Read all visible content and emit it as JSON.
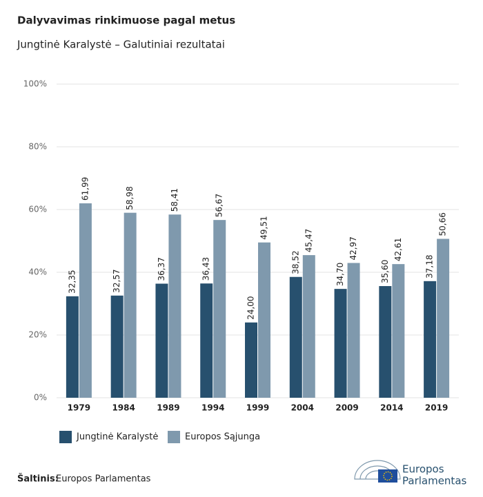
{
  "chart_data": {
    "type": "bar",
    "title": "Dalyvavimas rinkimuose pagal metus",
    "subtitle": "Jungtinė Karalystė – Galutiniai rezultatai",
    "categories": [
      "1979",
      "1984",
      "1989",
      "1994",
      "1999",
      "2004",
      "2009",
      "2014",
      "2019"
    ],
    "series": [
      {
        "name": "Jungtinė Karalystė",
        "color": "#27506e",
        "values": [
          32.35,
          32.57,
          36.37,
          36.43,
          24.0,
          38.52,
          34.7,
          35.6,
          37.18
        ],
        "value_labels": [
          "32,35",
          "32,57",
          "36,37",
          "36,43",
          "24,00",
          "38,52",
          "34,70",
          "35,60",
          "37,18"
        ]
      },
      {
        "name": "Europos Sąjunga",
        "color": "#7f99ad",
        "values": [
          61.99,
          58.98,
          58.41,
          56.67,
          49.51,
          45.47,
          42.97,
          42.61,
          50.66
        ],
        "value_labels": [
          "61,99",
          "58,98",
          "58,41",
          "56,67",
          "49,51",
          "45,47",
          "42,97",
          "42,61",
          "50,66"
        ]
      }
    ],
    "ylim": [
      0,
      100
    ],
    "yticks": [
      {
        "value": 0,
        "label": "0%"
      },
      {
        "value": 20,
        "label": "20%"
      },
      {
        "value": 40,
        "label": "40%"
      },
      {
        "value": 60,
        "label": "60%"
      },
      {
        "value": 80,
        "label": "80%"
      },
      {
        "value": 100,
        "label": "100%"
      }
    ],
    "grid": true,
    "source_label": "Šaltinis:",
    "source": "Europos Parlamentas",
    "logo_text": [
      "Europos",
      "Parlamentas"
    ]
  }
}
